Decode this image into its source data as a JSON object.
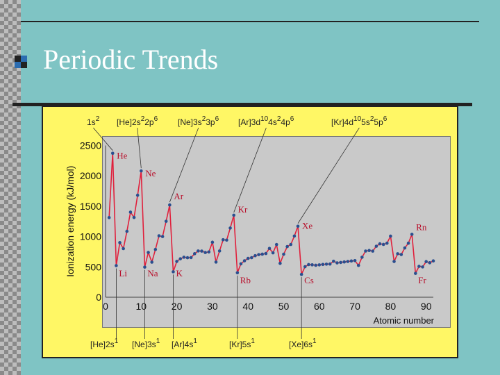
{
  "slide": {
    "title": "Periodic Trends"
  },
  "colors": {
    "background": "#7fc4c4",
    "panel": "#fff765",
    "plot_bg": "#c9c9c9",
    "line": "#e0203c",
    "point": "#2a4f8f",
    "element_label": "#b8102c"
  },
  "chart_data": {
    "type": "line",
    "xlabel": "Atomic number",
    "ylabel": "Ionization energy (kJ/mol)",
    "xlim": [
      0,
      92
    ],
    "ylim": [
      0,
      2500
    ],
    "x_ticks": [
      0,
      10,
      20,
      30,
      40,
      50,
      60,
      70,
      80,
      90
    ],
    "y_ticks": [
      0,
      500,
      1000,
      1500,
      2000,
      2500
    ],
    "grid": false,
    "series": [
      {
        "values": [
          [
            1,
            1312
          ],
          [
            2,
            2372
          ],
          [
            3,
            520
          ],
          [
            4,
            900
          ],
          [
            5,
            801
          ],
          [
            6,
            1086
          ],
          [
            7,
            1402
          ],
          [
            8,
            1314
          ],
          [
            9,
            1681
          ],
          [
            10,
            2081
          ],
          [
            11,
            496
          ],
          [
            12,
            738
          ],
          [
            13,
            578
          ],
          [
            14,
            787
          ],
          [
            15,
            1012
          ],
          [
            16,
            1000
          ],
          [
            17,
            1251
          ],
          [
            18,
            1521
          ],
          [
            19,
            419
          ],
          [
            20,
            590
          ],
          [
            21,
            633
          ],
          [
            22,
            659
          ],
          [
            23,
            651
          ],
          [
            24,
            653
          ],
          [
            25,
            717
          ],
          [
            26,
            762
          ],
          [
            27,
            760
          ],
          [
            28,
            737
          ],
          [
            29,
            746
          ],
          [
            30,
            906
          ],
          [
            31,
            579
          ],
          [
            32,
            762
          ],
          [
            33,
            947
          ],
          [
            34,
            941
          ],
          [
            35,
            1140
          ],
          [
            36,
            1351
          ],
          [
            37,
            403
          ],
          [
            38,
            550
          ],
          [
            39,
            600
          ],
          [
            40,
            640
          ],
          [
            41,
            652
          ],
          [
            42,
            684
          ],
          [
            43,
            702
          ],
          [
            44,
            710
          ],
          [
            45,
            720
          ],
          [
            46,
            804
          ],
          [
            47,
            731
          ],
          [
            48,
            868
          ],
          [
            49,
            558
          ],
          [
            50,
            709
          ],
          [
            51,
            834
          ],
          [
            52,
            869
          ],
          [
            53,
            1008
          ],
          [
            54,
            1170
          ],
          [
            55,
            376
          ],
          [
            56,
            503
          ],
          [
            57,
            538
          ],
          [
            58,
            534
          ],
          [
            59,
            527
          ],
          [
            60,
            533
          ],
          [
            61,
            540
          ],
          [
            62,
            545
          ],
          [
            63,
            547
          ],
          [
            64,
            593
          ],
          [
            65,
            566
          ],
          [
            66,
            573
          ],
          [
            67,
            581
          ],
          [
            68,
            589
          ],
          [
            69,
            597
          ],
          [
            70,
            603
          ],
          [
            71,
            524
          ],
          [
            72,
            659
          ],
          [
            73,
            761
          ],
          [
            74,
            770
          ],
          [
            75,
            760
          ],
          [
            76,
            840
          ],
          [
            77,
            880
          ],
          [
            78,
            870
          ],
          [
            79,
            890
          ],
          [
            80,
            1007
          ],
          [
            81,
            589
          ],
          [
            82,
            716
          ],
          [
            83,
            703
          ],
          [
            84,
            812
          ],
          [
            85,
            890
          ],
          [
            86,
            1037
          ],
          [
            87,
            393
          ],
          [
            88,
            509
          ],
          [
            89,
            499
          ],
          [
            90,
            587
          ],
          [
            91,
            568
          ],
          [
            92,
            598
          ]
        ]
      }
    ],
    "element_labels": [
      {
        "text": "He",
        "x": 2,
        "y": 2372
      },
      {
        "text": "Ne",
        "x": 10,
        "y": 2081
      },
      {
        "text": "Ar",
        "x": 18,
        "y": 1521
      },
      {
        "text": "Kr",
        "x": 36,
        "y": 1351
      },
      {
        "text": "Xe",
        "x": 54,
        "y": 1170
      },
      {
        "text": "Rn",
        "x": 86,
        "y": 1037
      },
      {
        "text": "Li",
        "x": 3,
        "y": 520
      },
      {
        "text": "Na",
        "x": 11,
        "y": 496
      },
      {
        "text": "K",
        "x": 19,
        "y": 419
      },
      {
        "text": "Rb",
        "x": 37,
        "y": 403
      },
      {
        "text": "Cs",
        "x": 55,
        "y": 376
      },
      {
        "text": "Fr",
        "x": 87,
        "y": 393
      }
    ],
    "top_configs": [
      {
        "base": "1s",
        "sup": "2",
        "x": 2
      },
      {
        "base": "[He]2s",
        "sup": "2",
        "rest": "2p",
        "sup2": "6",
        "x": 10
      },
      {
        "base": "[Ne]3s",
        "sup": "2",
        "rest": "3p",
        "sup2": "6",
        "x": 18
      },
      {
        "base": "[Ar]3d",
        "sup": "10",
        "rest": "4s",
        "sup2": "2",
        "rest2": "4p",
        "sup3": "6",
        "x": 36
      },
      {
        "base": "[Kr]4d",
        "sup": "10",
        "rest": "5s",
        "sup2": "2",
        "rest2": "5p",
        "sup3": "6",
        "x": 54
      }
    ],
    "bottom_configs": [
      {
        "base": "[He]2s",
        "sup": "1",
        "x": 3
      },
      {
        "base": "[Ne]3s",
        "sup": "1",
        "x": 11
      },
      {
        "base": "[Ar]4s",
        "sup": "1",
        "x": 19
      },
      {
        "base": "[Kr]5s",
        "sup": "1",
        "x": 37
      },
      {
        "base": "[Xe]6s",
        "sup": "1",
        "x": 55
      }
    ]
  }
}
